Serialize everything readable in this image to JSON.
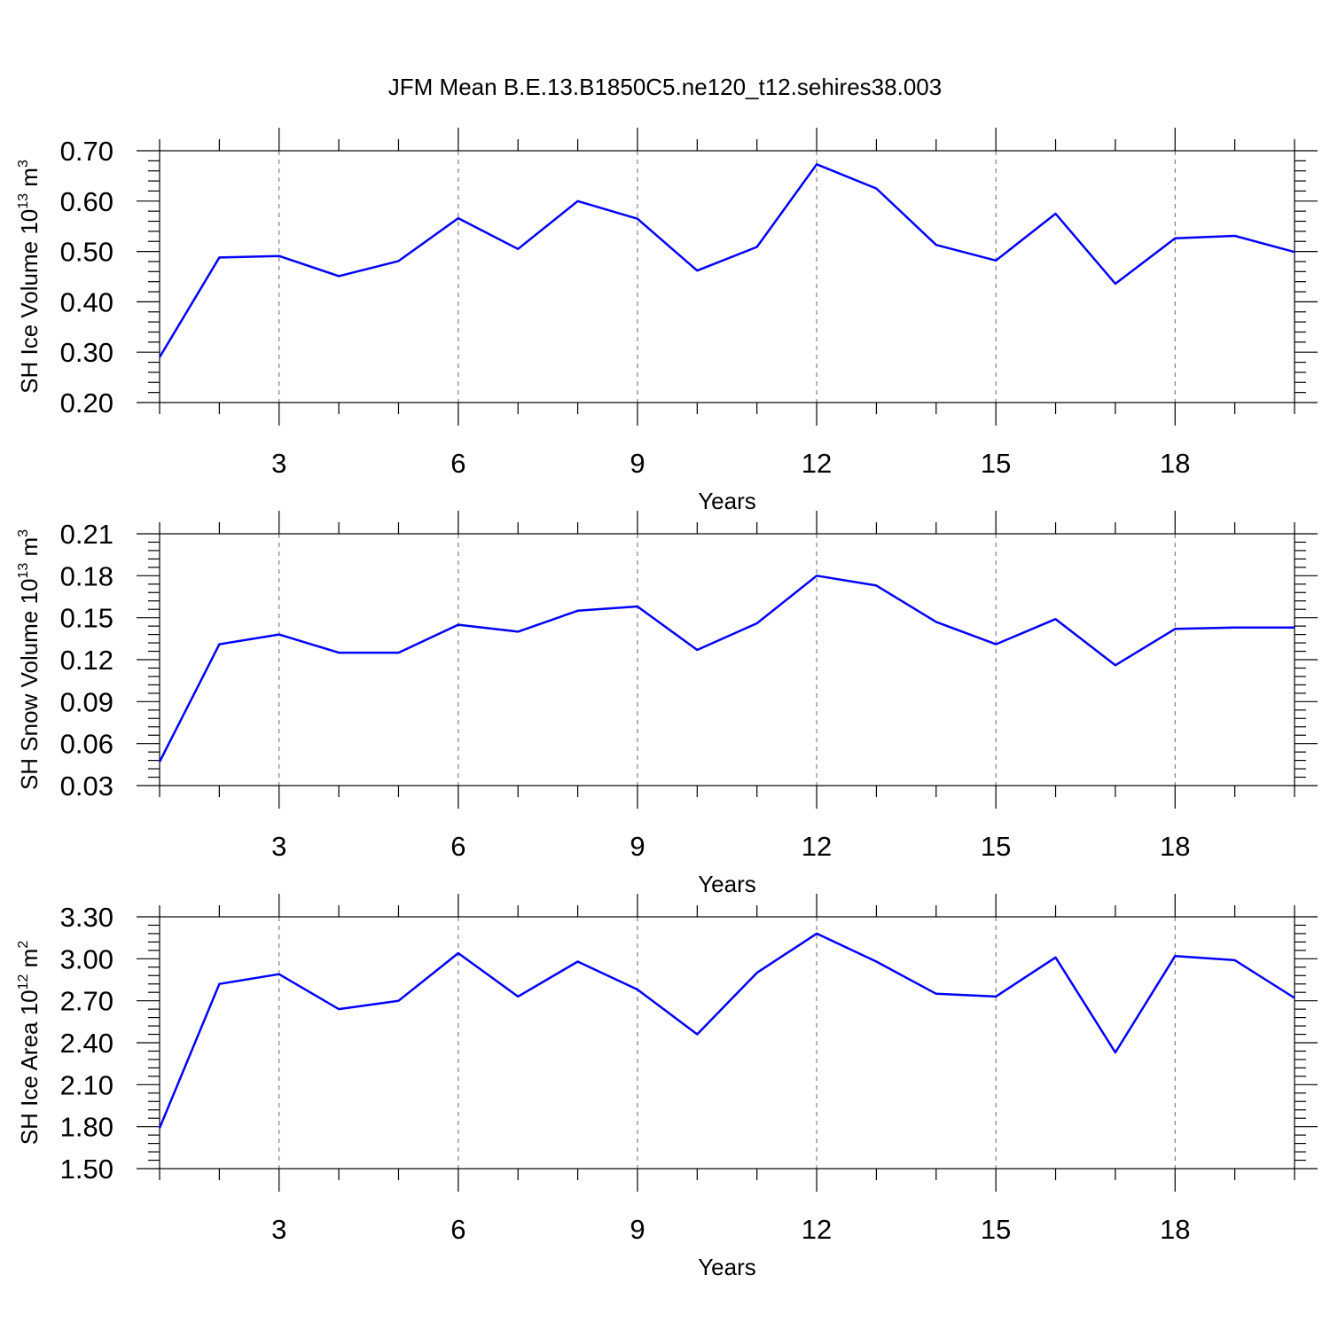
{
  "figure": {
    "title": "JFM Mean B.E.13.B1850C5.ne120_t12.sehires38.003"
  },
  "colors": {
    "line": "#0000ff",
    "grid": "#666666",
    "axis": "#000000"
  },
  "chart_data": [
    {
      "type": "line",
      "ylabel": {
        "text": "SH Ice Volume 10",
        "sup1": "13",
        "mid": " m",
        "sup2": "3"
      },
      "xlabel": "Years",
      "xlim": [
        1,
        20
      ],
      "ylim": [
        0.2,
        0.7
      ],
      "xticks": [
        3,
        6,
        9,
        12,
        15,
        18
      ],
      "xtick_labels": [
        "3",
        "6",
        "9",
        "12",
        "15",
        "18"
      ],
      "yticks": [
        0.2,
        0.3,
        0.4,
        0.5,
        0.6,
        0.7
      ],
      "ytick_labels": [
        "0.20",
        "0.30",
        "0.40",
        "0.50",
        "0.60",
        "0.70"
      ],
      "grid": "vertical-dashed",
      "x": [
        1,
        2,
        3,
        4,
        5,
        6,
        7,
        8,
        9,
        10,
        11,
        12,
        13,
        14,
        15,
        16,
        17,
        18,
        19,
        20
      ],
      "values": [
        0.29,
        0.488,
        0.491,
        0.451,
        0.481,
        0.566,
        0.505,
        0.6,
        0.565,
        0.462,
        0.509,
        0.673,
        0.625,
        0.513,
        0.482,
        0.575,
        0.436,
        0.526,
        0.531,
        0.499
      ]
    },
    {
      "type": "line",
      "ylabel": {
        "text": "SH Snow Volume 10",
        "sup1": "13",
        "mid": " m",
        "sup2": "3"
      },
      "xlabel": "Years",
      "xlim": [
        1,
        20
      ],
      "ylim": [
        0.03,
        0.21
      ],
      "xticks": [
        3,
        6,
        9,
        12,
        15,
        18
      ],
      "xtick_labels": [
        "3",
        "6",
        "9",
        "12",
        "15",
        "18"
      ],
      "yticks": [
        0.03,
        0.06,
        0.09,
        0.12,
        0.15,
        0.18,
        0.21
      ],
      "ytick_labels": [
        "0.03",
        "0.06",
        "0.09",
        "0.12",
        "0.15",
        "0.18",
        "0.21"
      ],
      "grid": "vertical-dashed",
      "x": [
        1,
        2,
        3,
        4,
        5,
        6,
        7,
        8,
        9,
        10,
        11,
        12,
        13,
        14,
        15,
        16,
        17,
        18,
        19,
        20
      ],
      "values": [
        0.047,
        0.131,
        0.138,
        0.125,
        0.125,
        0.145,
        0.14,
        0.155,
        0.158,
        0.127,
        0.146,
        0.18,
        0.173,
        0.147,
        0.131,
        0.149,
        0.116,
        0.142,
        0.143,
        0.143
      ]
    },
    {
      "type": "line",
      "ylabel": {
        "text": "SH Ice Area 10",
        "sup1": "12",
        "mid": " m",
        "sup2": "2"
      },
      "xlabel": "Years",
      "xlim": [
        1,
        20
      ],
      "ylim": [
        1.5,
        3.3
      ],
      "xticks": [
        3,
        6,
        9,
        12,
        15,
        18
      ],
      "xtick_labels": [
        "3",
        "6",
        "9",
        "12",
        "15",
        "18"
      ],
      "yticks": [
        1.5,
        1.8,
        2.1,
        2.4,
        2.7,
        3.0,
        3.3
      ],
      "ytick_labels": [
        "1.50",
        "1.80",
        "2.10",
        "2.40",
        "2.70",
        "3.00",
        "3.30"
      ],
      "grid": "vertical-dashed",
      "x": [
        1,
        2,
        3,
        4,
        5,
        6,
        7,
        8,
        9,
        10,
        11,
        12,
        13,
        14,
        15,
        16,
        17,
        18,
        19,
        20
      ],
      "values": [
        1.79,
        2.82,
        2.89,
        2.64,
        2.7,
        3.04,
        2.73,
        2.98,
        2.78,
        2.46,
        2.9,
        3.18,
        2.98,
        2.75,
        2.73,
        3.01,
        2.33,
        3.02,
        2.99,
        2.72
      ]
    }
  ]
}
